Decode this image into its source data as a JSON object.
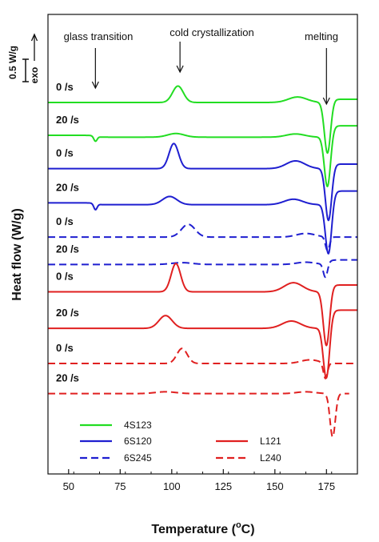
{
  "chart_data": {
    "type": "line",
    "xlabel": "Temperature (°C)",
    "xlabel_main": "Temperature (",
    "xlabel_unit_sup": "o",
    "xlabel_unit_tail": "C)",
    "ylabel": "Heat flow (W/g)",
    "xlim": [
      40,
      190
    ],
    "xticks": [
      50,
      75,
      100,
      125,
      150,
      175
    ],
    "y_ticks_shown": false,
    "scale_bar": {
      "label": "0.5 W/g",
      "direction_label": "exo"
    },
    "annotations": [
      {
        "text": "glass transition",
        "arrow_x": 63
      },
      {
        "text": "cold crystallization",
        "arrow_x": 104
      },
      {
        "text": "melting",
        "arrow_x": 175
      }
    ],
    "legend": {
      "placement": "bottom-left",
      "entries": [
        {
          "name": "4S123",
          "color": "#22dd22",
          "dash": "solid"
        },
        {
          "name": "6S120",
          "color": "#1f1fd0",
          "dash": "solid"
        },
        {
          "name": "6S245",
          "color": "#1f1fd0",
          "dash": "dashed"
        },
        {
          "name": "L121",
          "color": "#e02020",
          "dash": "solid"
        },
        {
          "name": "L240",
          "color": "#e02020",
          "dash": "dashed"
        }
      ]
    },
    "series": [
      {
        "name": "4S123",
        "rate_label": "0 /s",
        "color": "#22dd22",
        "dash": "solid",
        "baseline": 0,
        "tg": 0,
        "cc_center": 103,
        "cc_height": 0.36,
        "cc_width": 2.6,
        "pre_center": 161,
        "pre_height": 0.12,
        "melt_center": 175.5,
        "melt_depth": 1.12,
        "melt_width": 1.5,
        "end_offset": 0.07,
        "x_start": 40,
        "x_end": 190
      },
      {
        "name": "4S123",
        "rate_label": "20 /s",
        "color": "#22dd22",
        "dash": "solid",
        "baseline": -0.72,
        "tg": 0.11,
        "cc_center": 102,
        "cc_height": 0.08,
        "cc_width": 4,
        "pre_center": 160,
        "pre_height": 0.07,
        "melt_center": 175.5,
        "melt_depth": 1.12,
        "melt_width": 1.5,
        "end_offset": 0.25,
        "x_start": 40,
        "x_end": 190
      },
      {
        "name": "6S120",
        "rate_label": "0 /s",
        "color": "#1f1fd0",
        "dash": "solid",
        "baseline": -1.45,
        "tg": 0,
        "cc_center": 101,
        "cc_height": 0.55,
        "cc_width": 2.3,
        "pre_center": 160,
        "pre_height": 0.17,
        "melt_center": 176,
        "melt_depth": 1.15,
        "melt_width": 1.5,
        "end_offset": 0.1,
        "x_start": 40,
        "x_end": 190
      },
      {
        "name": "6S120",
        "rate_label": "20 /s",
        "color": "#1f1fd0",
        "dash": "solid",
        "baseline": -2.2,
        "tg": 0.13,
        "cc_center": 99,
        "cc_height": 0.18,
        "cc_width": 3.5,
        "pre_center": 159,
        "pre_height": 0.12,
        "melt_center": 176,
        "melt_depth": 1.12,
        "melt_width": 1.5,
        "end_offset": 0.3,
        "x_start": 40,
        "x_end": 190
      },
      {
        "name": "6S245",
        "rate_label": "0 /s",
        "color": "#1f1fd0",
        "dash": "dashed",
        "baseline": -2.95,
        "tg": 0,
        "cc_center": 108,
        "cc_height": 0.28,
        "cc_width": 3.3,
        "pre_center": 165,
        "pre_height": 0.08,
        "melt_center": 175.5,
        "melt_depth": 0.3,
        "melt_width": 1.0,
        "end_offset": 0.0,
        "x_start": 40,
        "x_end": 190
      },
      {
        "name": "6S245",
        "rate_label": "20 /s",
        "color": "#1f1fd0",
        "dash": "dashed",
        "baseline": -3.55,
        "tg": 0,
        "cc_center": 105,
        "cc_height": 0.04,
        "cc_width": 5,
        "pre_center": 165,
        "pre_height": 0.05,
        "melt_center": 174.5,
        "melt_depth": 0.3,
        "melt_width": 1.0,
        "end_offset": 0.1,
        "x_start": 40,
        "x_end": 190
      },
      {
        "name": "L121",
        "rate_label": "0 /s",
        "color": "#e02020",
        "dash": "solid",
        "baseline": -4.15,
        "tg": 0,
        "cc_center": 102,
        "cc_height": 0.62,
        "cc_width": 2.3,
        "pre_center": 159,
        "pre_height": 0.2,
        "melt_center": 175,
        "melt_depth": 1.2,
        "melt_width": 1.5,
        "end_offset": 0.15,
        "x_start": 40,
        "x_end": 190
      },
      {
        "name": "L121",
        "rate_label": "20 /s",
        "color": "#e02020",
        "dash": "solid",
        "baseline": -4.95,
        "tg": 0,
        "cc_center": 97,
        "cc_height": 0.28,
        "cc_width": 3.2,
        "pre_center": 158,
        "pre_height": 0.16,
        "melt_center": 175,
        "melt_depth": 1.15,
        "melt_width": 1.5,
        "end_offset": 0.4,
        "x_start": 40,
        "x_end": 190
      },
      {
        "name": "L240",
        "rate_label": "0 /s",
        "color": "#e02020",
        "dash": "dashed",
        "baseline": -5.72,
        "tg": 0,
        "cc_center": 105,
        "cc_height": 0.33,
        "cc_width": 2.5,
        "pre_center": 167,
        "pre_height": 0.08,
        "melt_center": 174.5,
        "melt_depth": 0.35,
        "melt_width": 1.0,
        "end_offset": 0.0,
        "x_start": 40,
        "x_end": 188
      },
      {
        "name": "L240",
        "rate_label": "20 /s",
        "color": "#e02020",
        "dash": "dashed",
        "baseline": -6.38,
        "tg": 0,
        "cc_center": 97,
        "cc_height": 0.04,
        "cc_width": 5,
        "pre_center": 165,
        "pre_height": 0.04,
        "melt_center": 178,
        "melt_depth": 0.95,
        "melt_width": 1.3,
        "end_offset": 0.0,
        "x_start": 40,
        "x_end": 186
      }
    ]
  }
}
